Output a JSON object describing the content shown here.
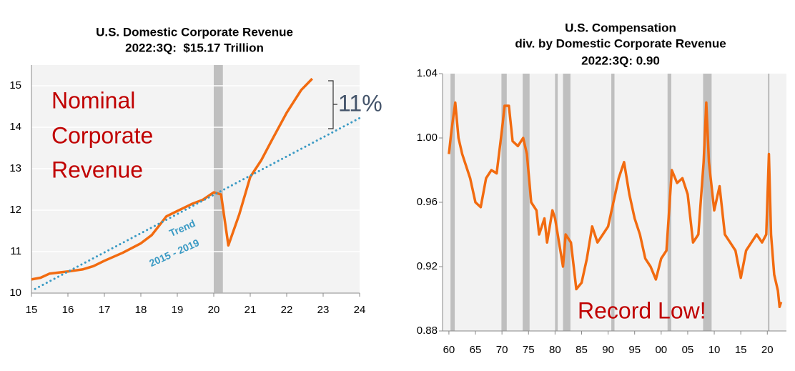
{
  "chart_data": [
    {
      "type": "line",
      "title": [
        "U.S. Domestic Corporate Revenue",
        "2022:3Q:  $15.17 Trillion"
      ],
      "annotations": [
        "Nominal",
        "Corporate",
        "Revenue",
        "11%",
        "Trend",
        "2015 - 2019"
      ],
      "xlim": [
        15,
        24
      ],
      "xticks": [
        15,
        16,
        17,
        18,
        19,
        20,
        21,
        22,
        23,
        24
      ],
      "ylim": [
        10,
        15.5
      ],
      "yticks": [
        10,
        11,
        12,
        13,
        14,
        15
      ],
      "grid": true,
      "shaded_ranges": [
        [
          20.0,
          20.25
        ]
      ],
      "series": [
        {
          "name": "Nominal Corporate Revenue",
          "color": "#f26b10",
          "style": "solid",
          "x": [
            15.0,
            15.25,
            15.5,
            16.0,
            16.4,
            16.7,
            17.0,
            17.5,
            18.0,
            18.3,
            18.7,
            19.0,
            19.4,
            19.7,
            20.0,
            20.2,
            20.4,
            20.7,
            21.0,
            21.3,
            21.6,
            22.0,
            22.4,
            22.6,
            22.7
          ],
          "values": [
            10.33,
            10.37,
            10.47,
            10.52,
            10.57,
            10.65,
            10.78,
            10.97,
            11.2,
            11.4,
            11.85,
            11.98,
            12.15,
            12.25,
            12.43,
            12.38,
            11.15,
            11.9,
            12.8,
            13.2,
            13.7,
            14.35,
            14.9,
            15.08,
            15.17
          ]
        },
        {
          "name": "Trend 2015 - 2019",
          "color": "#3a9ac4",
          "style": "dotted",
          "x": [
            15.1,
            24.0
          ],
          "values": [
            10.1,
            14.22
          ]
        }
      ]
    },
    {
      "type": "line",
      "title": [
        "U.S. Compensation",
        "div. by Domestic Corporate Revenue",
        "2022:3Q: 0.90"
      ],
      "annotations": [
        "Record Low!"
      ],
      "xlim": [
        1958.8,
        2023.6
      ],
      "xticks": [
        {
          "value": 1960,
          "label": "60"
        },
        {
          "value": 1965,
          "label": "65"
        },
        {
          "value": 1970,
          "label": "70"
        },
        {
          "value": 1975,
          "label": "75"
        },
        {
          "value": 1980,
          "label": "80"
        },
        {
          "value": 1985,
          "label": "85"
        },
        {
          "value": 1990,
          "label": "90"
        },
        {
          "value": 1995,
          "label": "95"
        },
        {
          "value": 2000,
          "label": "00"
        },
        {
          "value": 2005,
          "label": "05"
        },
        {
          "value": 2010,
          "label": "10"
        },
        {
          "value": 2015,
          "label": "15"
        },
        {
          "value": 2020,
          "label": "20"
        }
      ],
      "ylim": [
        0.88,
        1.04
      ],
      "yticks": [
        0.88,
        0.92,
        0.96,
        {
          "value": 1,
          "label": "1.00"
        },
        1.04
      ],
      "grid": false,
      "shaded_ranges": [
        [
          1960.3,
          1961.1
        ],
        [
          1969.9,
          1970.9
        ],
        [
          1973.9,
          1975.2
        ],
        [
          1980.0,
          1980.5
        ],
        [
          1981.5,
          1982.9
        ],
        [
          1990.6,
          1991.2
        ],
        [
          2001.2,
          2001.9
        ],
        [
          2007.9,
          2009.5
        ],
        [
          2020.1,
          2020.4
        ]
      ],
      "series": [
        {
          "name": "Compensation / Corporate Revenue",
          "color": "#f26b10",
          "style": "solid",
          "x": [
            1960.0,
            1960.5,
            1961.2,
            1961.8,
            1962.5,
            1963,
            1964,
            1965,
            1966,
            1967,
            1968,
            1969,
            1970,
            1970.5,
            1971.3,
            1972,
            1973,
            1974,
            1974.7,
            1975.5,
            1976.5,
            1977,
            1978,
            1978.5,
            1979.5,
            1980,
            1980.5,
            1981,
            1981.5,
            1982,
            1983,
            1984,
            1985,
            1986,
            1987,
            1988,
            1989,
            1990,
            1991,
            1992,
            1993,
            1994,
            1995,
            1996,
            1997,
            1998,
            1999,
            2000,
            2001,
            2002,
            2003,
            2004,
            2005,
            2006,
            2007,
            2008,
            2008.5,
            2009,
            2010,
            2011,
            2012,
            2013,
            2014,
            2015,
            2016,
            2017,
            2018,
            2019,
            2019.8,
            2020.3,
            2020.7,
            2021.3,
            2022,
            2022.3,
            2022.6
          ],
          "values": [
            0.99,
            1.005,
            1.022,
            1.0,
            0.99,
            0.985,
            0.975,
            0.96,
            0.957,
            0.975,
            0.98,
            0.978,
            1.005,
            1.02,
            1.02,
            0.998,
            0.995,
            1.0,
            0.99,
            0.96,
            0.955,
            0.94,
            0.95,
            0.935,
            0.955,
            0.95,
            0.94,
            0.93,
            0.92,
            0.94,
            0.935,
            0.906,
            0.91,
            0.925,
            0.945,
            0.935,
            0.94,
            0.945,
            0.96,
            0.975,
            0.985,
            0.965,
            0.95,
            0.94,
            0.925,
            0.92,
            0.912,
            0.925,
            0.93,
            0.98,
            0.972,
            0.975,
            0.965,
            0.935,
            0.94,
            0.985,
            1.022,
            0.985,
            0.955,
            0.97,
            0.94,
            0.935,
            0.93,
            0.913,
            0.93,
            0.935,
            0.94,
            0.935,
            0.94,
            0.99,
            0.94,
            0.915,
            0.905,
            0.895,
            0.898
          ]
        }
      ]
    }
  ]
}
